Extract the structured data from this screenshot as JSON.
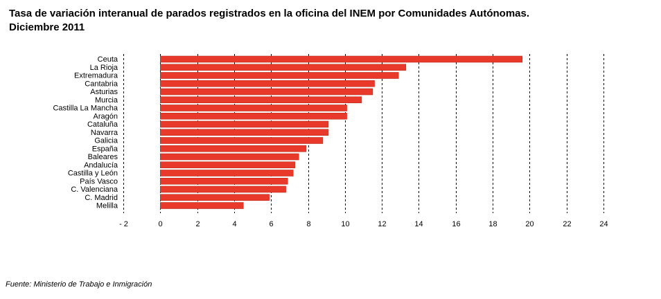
{
  "title": "Tasa de variación interanual de parados registrados en la oficina del INEM por Comunidades Autónomas. Diciembre 2011",
  "source": "Fuente: Ministerio de Trabajo e Inmigración",
  "colors": {
    "bar": "#e8392a",
    "bar_edge": "#b82a1d",
    "grid": "#000000"
  },
  "chart_data": {
    "type": "bar",
    "orientation": "horizontal",
    "categories": [
      "Ceuta",
      "La Rioja",
      "Extremadura",
      "Cantabria",
      "Asturias",
      "Murcia",
      "Castilla La Mancha",
      "Aragón",
      "Cataluña",
      "Navarra",
      "Galicia",
      "España",
      "Baleares",
      "Andalucía",
      "Castilla y León",
      "País Vasco",
      "C. Valenciana",
      "C. Madrid",
      "Melilla"
    ],
    "values": [
      19.6,
      13.3,
      12.9,
      11.6,
      11.5,
      10.9,
      10.1,
      10.1,
      9.1,
      9.1,
      8.8,
      7.9,
      7.5,
      7.3,
      7.2,
      6.9,
      6.8,
      5.9,
      4.5
    ],
    "xlim": [
      -2,
      24
    ],
    "xticks": [
      -2,
      0,
      2,
      4,
      6,
      8,
      10,
      12,
      14,
      16,
      18,
      20,
      22,
      24
    ],
    "xtick_labels": [
      "- 2",
      "0",
      "2",
      "4",
      "6",
      "8",
      "10",
      "12",
      "14",
      "16",
      "18",
      "20",
      "22",
      "24"
    ],
    "grid": "vertical dashed",
    "legend": "none"
  }
}
